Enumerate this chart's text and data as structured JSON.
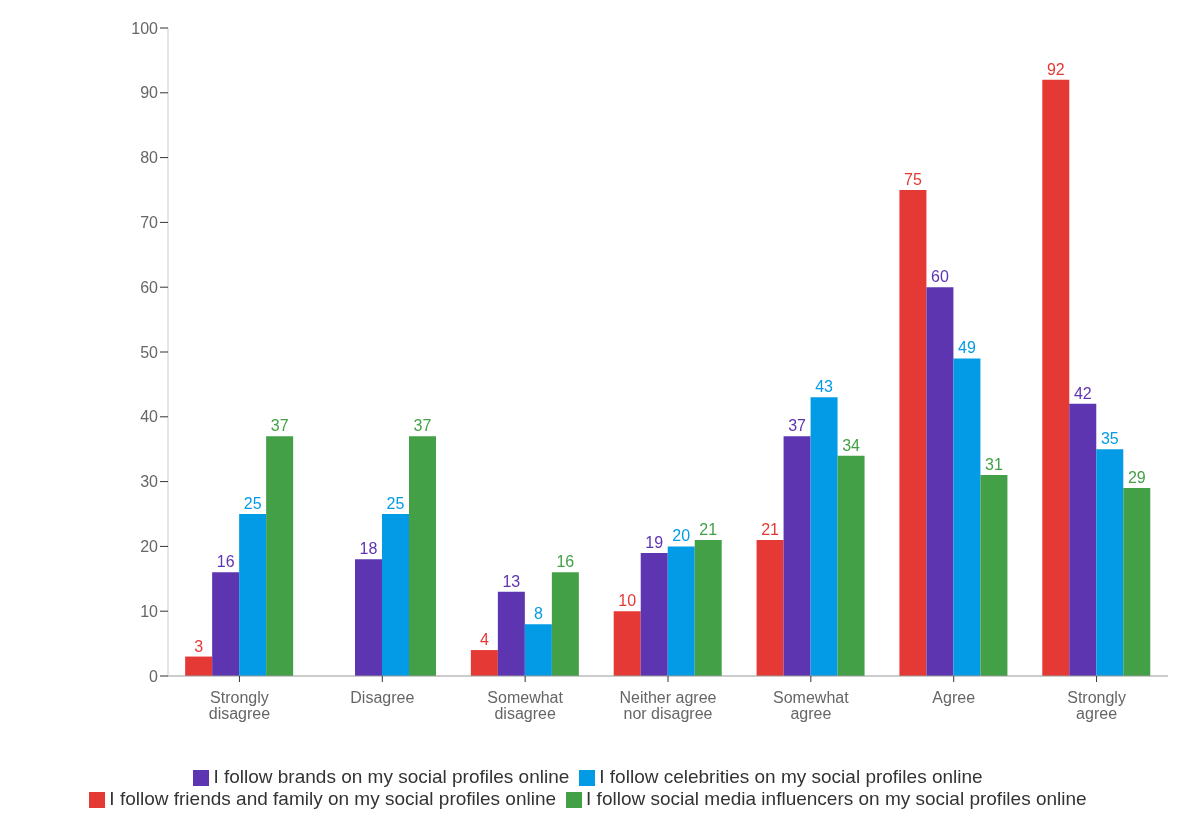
{
  "chart_data": {
    "type": "bar",
    "categories": [
      "Strongly disagree",
      "Disagree",
      "Somewhat disagree",
      "Neither agree nor disagree",
      "Somewhat agree",
      "Agree",
      "Strongly agree"
    ],
    "series": [
      {
        "name": "I follow friends and family on my social profiles online",
        "color": "#e53935",
        "values": [
          3,
          null,
          4,
          10,
          21,
          75,
          92
        ]
      },
      {
        "name": "I follow brands on my social profiles online",
        "color": "#5e35b1",
        "values": [
          16,
          18,
          13,
          19,
          37,
          60,
          42
        ]
      },
      {
        "name": "I follow celebrities on my social profiles online",
        "color": "#039be5",
        "values": [
          25,
          25,
          8,
          20,
          43,
          49,
          35
        ]
      },
      {
        "name": "I follow social media influencers on my social profiles online",
        "color": "#43a047",
        "values": [
          37,
          37,
          16,
          21,
          34,
          31,
          29
        ]
      }
    ],
    "ylim": [
      0,
      100
    ],
    "yticks": [
      0,
      10,
      20,
      30,
      40,
      50,
      60,
      70,
      80,
      90,
      100
    ],
    "grid": false,
    "legend": "bottom",
    "data_labels": true
  }
}
